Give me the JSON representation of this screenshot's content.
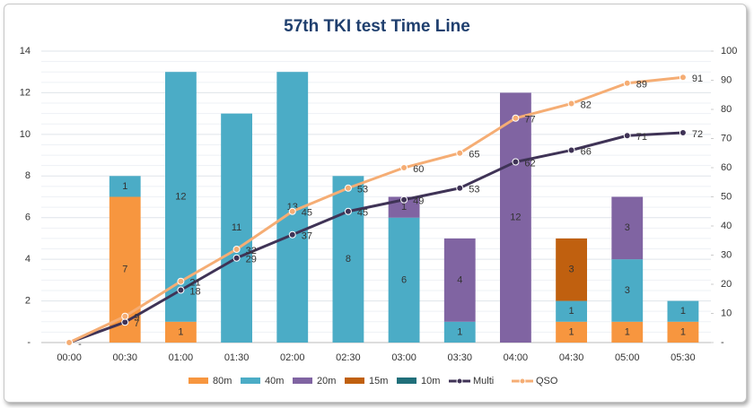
{
  "chart_data": {
    "type": "bar-line",
    "title": "57th TKI test Time Line",
    "categories": [
      "00:00",
      "00:30",
      "01:00",
      "01:30",
      "02:00",
      "02:30",
      "03:00",
      "03:30",
      "04:00",
      "04:30",
      "05:00",
      "05:30"
    ],
    "series": [
      {
        "name": "80m",
        "type": "bar",
        "color": "#f7963f",
        "values": [
          null,
          7,
          1,
          null,
          null,
          null,
          null,
          null,
          null,
          1,
          1,
          1
        ]
      },
      {
        "name": "40m",
        "type": "bar",
        "color": "#4bacc6",
        "values": [
          null,
          1,
          12,
          11,
          13,
          8,
          6,
          1,
          null,
          1,
          3,
          1
        ]
      },
      {
        "name": "20m",
        "type": "bar",
        "color": "#8064a2",
        "values": [
          null,
          null,
          null,
          null,
          null,
          null,
          1,
          4,
          12,
          null,
          3,
          null
        ]
      },
      {
        "name": "15m",
        "type": "bar",
        "color": "#c0600f",
        "values": [
          null,
          null,
          null,
          null,
          null,
          null,
          null,
          null,
          null,
          3,
          null,
          null
        ]
      },
      {
        "name": "10m",
        "type": "bar",
        "color": "#206f7a",
        "values": [
          null,
          null,
          null,
          null,
          null,
          null,
          null,
          null,
          null,
          null,
          null,
          null
        ]
      },
      {
        "name": "Multi",
        "type": "line",
        "axis": "y2",
        "color": "#3f3356",
        "values": [
          0,
          7,
          18,
          29,
          37,
          45,
          49,
          53,
          62,
          66,
          71,
          72
        ],
        "value_labels": [
          "-",
          "7",
          "18",
          "29",
          "37",
          "45",
          "49",
          "53",
          "62",
          "66",
          "71",
          "72"
        ]
      },
      {
        "name": "QSO",
        "type": "line",
        "axis": "y2",
        "color": "#f5ad74",
        "values": [
          0,
          9,
          21,
          32,
          45,
          53,
          60,
          65,
          77,
          82,
          89,
          91
        ],
        "value_labels": [
          null,
          "9",
          "21",
          "32",
          "45",
          "53",
          "60",
          "65",
          "77",
          "82",
          "89",
          "91"
        ]
      }
    ],
    "ylim": [
      0,
      14
    ],
    "yticks": [
      {
        "value": 0,
        "label": "-"
      },
      2,
      4,
      6,
      8,
      10,
      12,
      14
    ],
    "y2lim": [
      0,
      100
    ],
    "y2ticks": [
      {
        "value": 0,
        "label": "-"
      },
      10,
      20,
      30,
      40,
      50,
      60,
      70,
      80,
      90,
      100
    ],
    "grid": true,
    "legend": "bottom"
  }
}
